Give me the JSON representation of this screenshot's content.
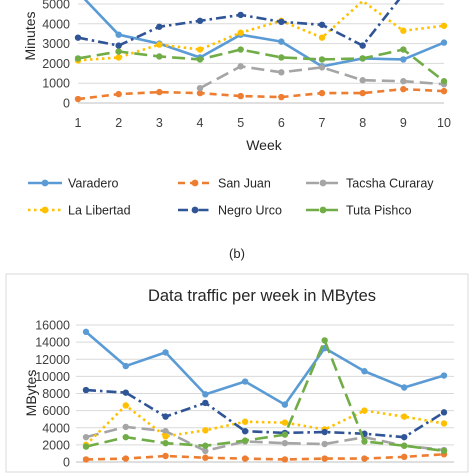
{
  "caption": "(b)",
  "chart_data": [
    {
      "type": "line",
      "title": "",
      "xlabel": "Week",
      "ylabel": "Minutes",
      "x": [
        1,
        2,
        3,
        4,
        5,
        6,
        7,
        8,
        9,
        10
      ],
      "ylim": [
        0,
        5000
      ],
      "yticks": [
        0,
        1000,
        2000,
        3000,
        4000,
        5000
      ],
      "grid": true,
      "legend_position": "bottom",
      "series": [
        {
          "name": "Varadero",
          "color": "#5b9bd5",
          "dash": "solid",
          "marker": "circle",
          "values": [
            5600,
            3450,
            3000,
            2300,
            3450,
            3100,
            1850,
            2250,
            2200,
            3050
          ]
        },
        {
          "name": "San Juan",
          "color": "#ed7d31",
          "dash": "dash",
          "marker": "circle",
          "values": [
            200,
            450,
            550,
            500,
            350,
            300,
            500,
            500,
            700,
            600
          ]
        },
        {
          "name": "Tacsha Curaray",
          "color": "#a5a5a5",
          "dash": "longdash",
          "marker": "circle",
          "values": [
            null,
            null,
            null,
            750,
            1850,
            1550,
            1800,
            1150,
            1100,
            950
          ]
        },
        {
          "name": "La Libertad",
          "color": "#ffc000",
          "dash": "dot",
          "marker": "circle",
          "values": [
            2150,
            2300,
            2950,
            2700,
            3550,
            4150,
            3300,
            5150,
            3650,
            3900
          ]
        },
        {
          "name": "Negro Urco",
          "color": "#2f5597",
          "dash": "dashdot",
          "marker": "circle",
          "values": [
            3300,
            2900,
            3850,
            4150,
            4450,
            4100,
            3950,
            2900,
            5500,
            null
          ]
        },
        {
          "name": "Tuta Pishco",
          "color": "#70ad47",
          "dash": "longdash",
          "marker": "circle",
          "values": [
            2250,
            2600,
            2350,
            2200,
            2700,
            2300,
            2200,
            2250,
            2700,
            1100
          ]
        }
      ]
    },
    {
      "type": "line",
      "title": "Data traffic per week in MBytes",
      "xlabel": "",
      "ylabel": "MBytes",
      "ylim": [
        0,
        16000
      ],
      "yticks": [
        0,
        2000,
        4000,
        6000,
        8000,
        10000,
        12000,
        14000,
        16000
      ],
      "grid": true,
      "series": [
        {
          "name": "Varadero",
          "color": "#5b9bd5",
          "dash": "solid",
          "values": [
            15200,
            11200,
            12800,
            7900,
            9400,
            6700,
            13300,
            10600,
            8700,
            10100
          ]
        },
        {
          "name": "San Juan",
          "color": "#ed7d31",
          "dash": "dash",
          "values": [
            300,
            400,
            700,
            500,
            400,
            300,
            400,
            400,
            600,
            900
          ]
        },
        {
          "name": "Tacsha Curaray",
          "color": "#a5a5a5",
          "dash": "longdash",
          "values": [
            2900,
            4100,
            3600,
            1300,
            2400,
            2200,
            2100,
            2900,
            1900,
            1400
          ]
        },
        {
          "name": "La Libertad",
          "color": "#ffc000",
          "dash": "dot",
          "values": [
            2000,
            6600,
            3000,
            3700,
            4700,
            4600,
            3800,
            6000,
            5300,
            4500
          ]
        },
        {
          "name": "Negro Urco",
          "color": "#2f5597",
          "dash": "dashdot",
          "values": [
            8400,
            8100,
            5300,
            6900,
            3600,
            3400,
            3500,
            3300,
            2900,
            5800
          ]
        },
        {
          "name": "Tuta Pishco",
          "color": "#70ad47",
          "dash": "longdash",
          "values": [
            1800,
            2900,
            2200,
            1900,
            2500,
            3200,
            14200,
            2400,
            1900,
            1300
          ]
        }
      ]
    }
  ]
}
